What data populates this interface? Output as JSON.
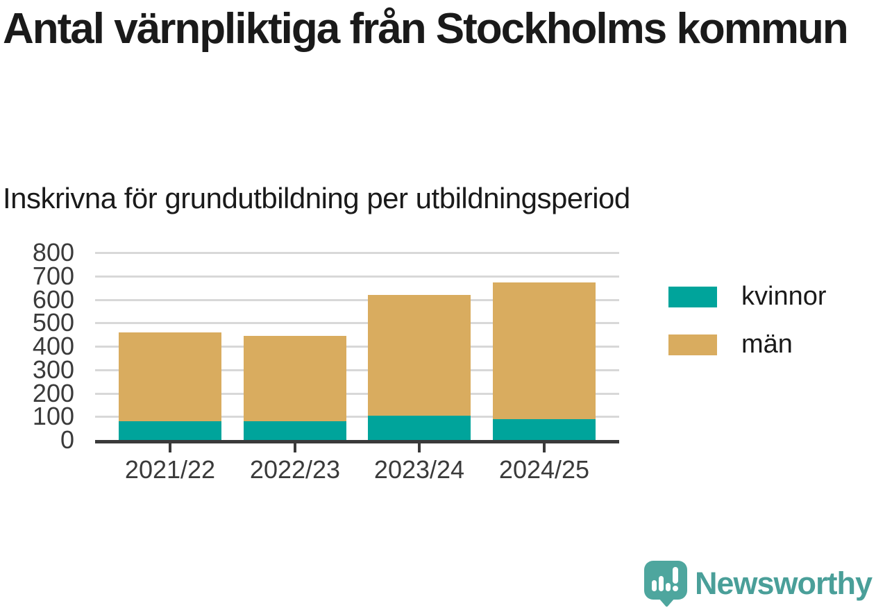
{
  "title": "Antal värnpliktiga från Stockholms kommun",
  "subtitle": "Inskrivna för grundutbildning per utbildningsperiod",
  "chart_data": {
    "type": "bar",
    "stacked": true,
    "title": "Antal värnpliktiga från Stockholms kommun",
    "subtitle": "Inskrivna för grundutbildning per utbildningsperiod",
    "categories": [
      "2021/22",
      "2022/23",
      "2023/24",
      "2024/25"
    ],
    "series": [
      {
        "name": "kvinnor",
        "color": "#00a49b",
        "values": [
          80,
          80,
          105,
          90
        ]
      },
      {
        "name": "män",
        "color": "#d9ac5f",
        "values": [
          380,
          365,
          515,
          583
        ]
      }
    ],
    "stack_totals": [
      460,
      445,
      620,
      673
    ],
    "xlabel": "",
    "ylabel": "",
    "ylim": [
      0,
      800
    ],
    "yticks": [
      0,
      100,
      200,
      300,
      400,
      500,
      600,
      700,
      800
    ],
    "grid": true,
    "legend_position": "right"
  },
  "legend": {
    "items": [
      {
        "label": "kvinnor",
        "color": "#00a49b"
      },
      {
        "label": "män",
        "color": "#d9ac5f"
      }
    ]
  },
  "colors": {
    "grid": "#d8d8d8",
    "axis": "#3a3a3a",
    "text": "#1a1a1a",
    "kvinnor": "#00a49b",
    "man": "#d9ac5f",
    "brand": "#4a9f99"
  },
  "branding": {
    "logo_text": "Newsworthy",
    "logo_icon": "newsworthy-speech-bubble-bar-chart-icon"
  }
}
